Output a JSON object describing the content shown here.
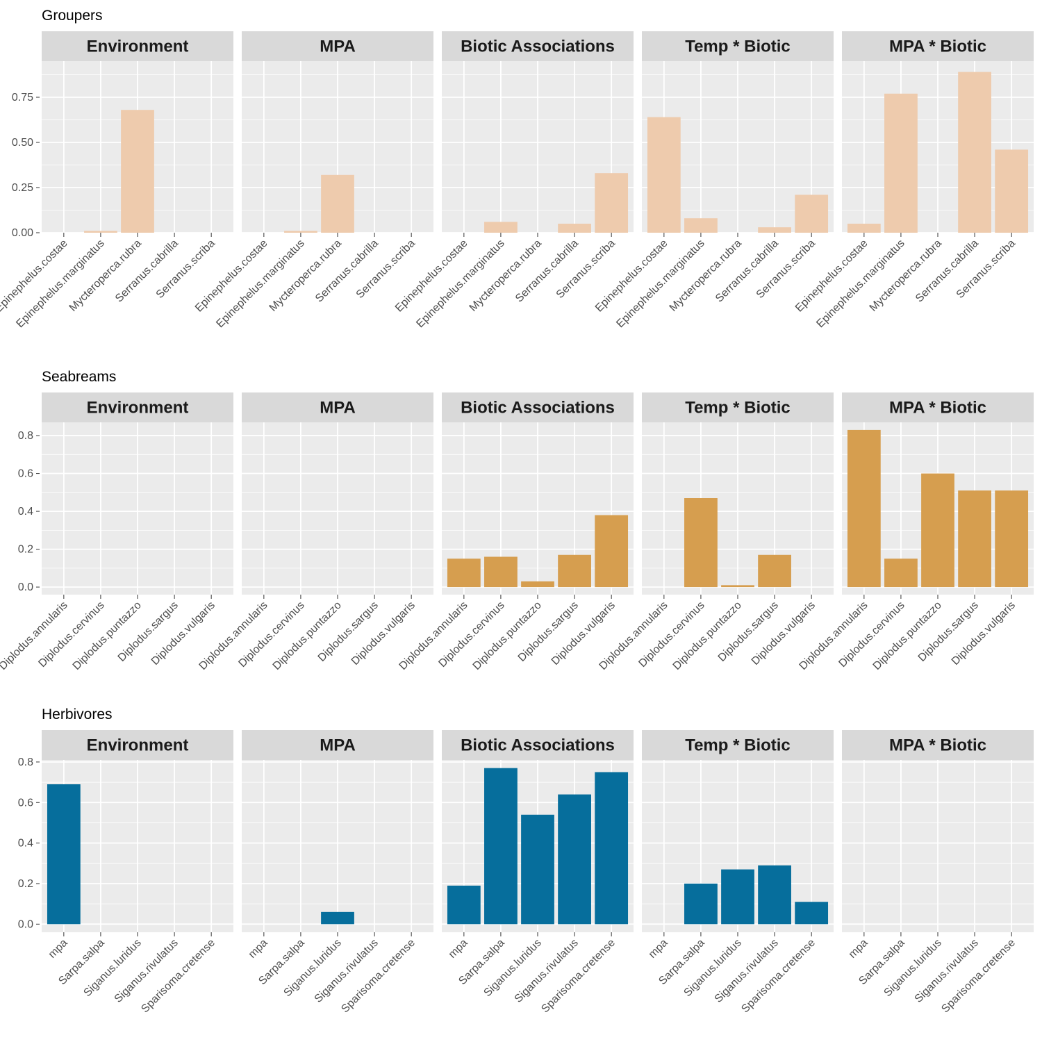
{
  "chart_data": [
    {
      "type": "bar",
      "title": "Groupers",
      "color": "#EECBAD",
      "ylim": [
        0,
        0.95
      ],
      "yticks": [
        0,
        0.25,
        0.5,
        0.75
      ],
      "ytick_labels": [
        "0.00",
        "0.25",
        "0.50",
        "0.75"
      ],
      "categories": [
        "Epinephelus.costae",
        "Epinephelus.marginatus",
        "Mycteroperca.rubra",
        "Serranus.cabrilla",
        "Serranus.scriba"
      ],
      "panels": [
        {
          "name": "Environment",
          "values": [
            0,
            0.01,
            0.68,
            0,
            0
          ]
        },
        {
          "name": "MPA",
          "values": [
            0,
            0.01,
            0.32,
            0,
            0
          ]
        },
        {
          "name": "Biotic Associations",
          "values": [
            0,
            0.06,
            0,
            0.05,
            0.33
          ]
        },
        {
          "name": "Temp * Biotic",
          "values": [
            0.64,
            0.08,
            0,
            0.03,
            0.21
          ]
        },
        {
          "name": "MPA * Biotic",
          "values": [
            0.05,
            0.77,
            0,
            0.89,
            0.46
          ]
        }
      ]
    },
    {
      "type": "bar",
      "title": "Seabreams",
      "color": "#D69E4F",
      "ylim": [
        -0.04,
        0.87
      ],
      "yticks": [
        0,
        0.2,
        0.4,
        0.6,
        0.8
      ],
      "ytick_labels": [
        "0.0",
        "0.2",
        "0.4",
        "0.6",
        "0.8"
      ],
      "categories": [
        "Diplodus.annularis",
        "Diplodus.cervinus",
        "Diplodus.puntazzo",
        "Diplodus.sargus",
        "Diplodus.vulgaris"
      ],
      "panels": [
        {
          "name": "Environment",
          "values": [
            0,
            0,
            0,
            0,
            0
          ]
        },
        {
          "name": "MPA",
          "values": [
            0,
            0,
            0,
            0,
            0
          ]
        },
        {
          "name": "Biotic Associations",
          "values": [
            0.15,
            0.16,
            0.03,
            0.17,
            0.38
          ]
        },
        {
          "name": "Temp * Biotic",
          "values": [
            0,
            0.47,
            0.01,
            0.17,
            0
          ]
        },
        {
          "name": "MPA * Biotic",
          "values": [
            0.83,
            0.15,
            0.6,
            0.51,
            0.51
          ]
        }
      ]
    },
    {
      "type": "bar",
      "title": "Herbivores",
      "color": "#066E9C",
      "ylim": [
        -0.04,
        0.81
      ],
      "yticks": [
        0,
        0.2,
        0.4,
        0.6,
        0.8
      ],
      "ytick_labels": [
        "0.0",
        "0.2",
        "0.4",
        "0.6",
        "0.8"
      ],
      "categories": [
        "mpa",
        "Sarpa.salpa",
        "Siganus.luridus",
        "Siganus.rivulatus",
        "Sparisoma.cretense"
      ],
      "panels": [
        {
          "name": "Environment",
          "values": [
            0.69,
            0,
            0,
            0,
            0
          ]
        },
        {
          "name": "MPA",
          "values": [
            0,
            0,
            0.06,
            0,
            0
          ]
        },
        {
          "name": "Biotic Associations",
          "values": [
            0.19,
            0.77,
            0.54,
            0.64,
            0.75
          ]
        },
        {
          "name": "Temp * Biotic",
          "values": [
            0,
            0.2,
            0.27,
            0.29,
            0.11
          ]
        },
        {
          "name": "MPA * Biotic",
          "values": [
            0,
            0,
            0,
            0,
            0
          ]
        }
      ]
    }
  ],
  "style": {
    "panel_background": "#EBEBEB",
    "strip_background": "#D9D9D9",
    "grid_color": "#FFFFFF"
  }
}
